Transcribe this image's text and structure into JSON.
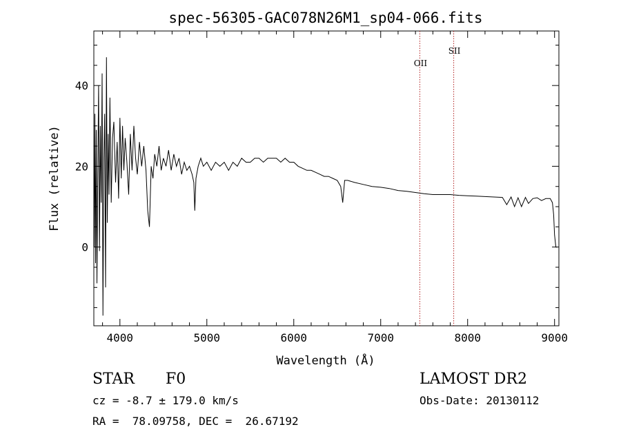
{
  "chart_data": {
    "type": "line",
    "title": "spec-56305-GAC078N26M1_sp04-066.fits",
    "xlabel": "Wavelength (Å)",
    "ylabel": "Flux (relative)",
    "xlim": [
      3700,
      9050
    ],
    "ylim": [
      -19.5,
      53.5
    ],
    "xticks": [
      4000,
      5000,
      6000,
      7000,
      8000,
      9000
    ],
    "yticks": [
      0,
      20,
      40
    ],
    "grid": false,
    "series_color": "#000000",
    "line_marker_color": "#b22222",
    "lines": [
      {
        "label": "OII",
        "x": 7450
      },
      {
        "label": "SII",
        "x": 7840
      }
    ],
    "spectrum": {
      "x": [
        3705,
        3712,
        3720,
        3728,
        3736,
        3745,
        3755,
        3765,
        3775,
        3785,
        3795,
        3805,
        3815,
        3825,
        3835,
        3845,
        3855,
        3865,
        3875,
        3885,
        3900,
        3915,
        3930,
        3950,
        3968,
        3985,
        4000,
        4015,
        4030,
        4045,
        4060,
        4080,
        4101,
        4120,
        4140,
        4160,
        4180,
        4200,
        4225,
        4250,
        4275,
        4300,
        4320,
        4340,
        4360,
        4380,
        4400,
        4425,
        4450,
        4475,
        4500,
        4530,
        4560,
        4590,
        4620,
        4650,
        4680,
        4710,
        4740,
        4770,
        4800,
        4830,
        4850,
        4861,
        4875,
        4900,
        4930,
        4960,
        5000,
        5050,
        5100,
        5150,
        5200,
        5250,
        5300,
        5350,
        5400,
        5450,
        5500,
        5550,
        5600,
        5650,
        5700,
        5750,
        5800,
        5850,
        5900,
        5950,
        6000,
        6050,
        6100,
        6150,
        6200,
        6250,
        6300,
        6350,
        6400,
        6450,
        6500,
        6540,
        6563,
        6585,
        6620,
        6700,
        6800,
        6900,
        7000,
        7100,
        7200,
        7300,
        7400,
        7500,
        7600,
        7700,
        7800,
        7900,
        8000,
        8100,
        8200,
        8300,
        8400,
        8450,
        8500,
        8540,
        8580,
        8620,
        8665,
        8700,
        8750,
        8800,
        8850,
        8900,
        8950,
        8975,
        8990,
        9000,
        9015,
        9030
      ],
      "y": [
        0,
        33,
        -4,
        29,
        -9,
        18,
        40,
        -1,
        30,
        11,
        43,
        -17,
        22,
        33,
        -10,
        47,
        6,
        28,
        13,
        37,
        11,
        27,
        31,
        16,
        26,
        12,
        32,
        17,
        30,
        19,
        27,
        21,
        13,
        28,
        19,
        30,
        22,
        18,
        26,
        20,
        25,
        19,
        9,
        5,
        20,
        17,
        23,
        20,
        25,
        19,
        22,
        20,
        24,
        19,
        23,
        20,
        22,
        18,
        21,
        19,
        20,
        18,
        16,
        9,
        17,
        20,
        22,
        20,
        21,
        19,
        21,
        20,
        21,
        19,
        21,
        20,
        22,
        21,
        21,
        22,
        22,
        21,
        22,
        22,
        22,
        21,
        22,
        21,
        21,
        20,
        19.5,
        19,
        19,
        18.5,
        18,
        17.5,
        17.5,
        17,
        16.5,
        15,
        11,
        16.5,
        16.5,
        16,
        15.5,
        15,
        14.8,
        14.5,
        14,
        13.8,
        13.5,
        13.2,
        13,
        13,
        13,
        12.8,
        12.7,
        12.6,
        12.5,
        12.4,
        12.3,
        10.5,
        12.4,
        10,
        12.2,
        10,
        12.3,
        10.8,
        12,
        12.2,
        11.5,
        12,
        12,
        11,
        8,
        3,
        0,
        0
      ]
    }
  },
  "footer": {
    "object_class": "STAR",
    "subclass": "F0",
    "cz": "cz = -8.7 ± 179.0 km/s",
    "radec": "RA =  78.09758, DEC =  26.67192",
    "survey": "LAMOST DR2",
    "obs_date": "Obs-Date: 20130112"
  }
}
